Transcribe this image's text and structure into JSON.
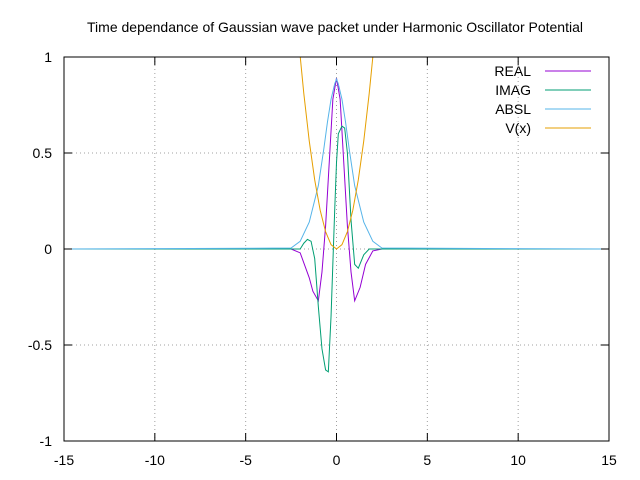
{
  "chart_data": {
    "type": "line",
    "title": "Time dependance of Gaussian wave packet under Harmonic Oscillator Potential",
    "xlabel": "",
    "ylabel": "",
    "xlim": [
      -15,
      15
    ],
    "ylim": [
      -1,
      1
    ],
    "xticks": [
      -15,
      -10,
      -5,
      0,
      5,
      10,
      15
    ],
    "yticks": [
      -1,
      -0.5,
      0,
      0.5,
      1
    ],
    "xtick_labels": [
      "-15",
      "-10",
      "-5",
      "0",
      "5",
      "10",
      "15"
    ],
    "ytick_labels": [
      "-1",
      "-0.5",
      "0",
      "0.5",
      "1"
    ],
    "grid": true,
    "legend_position": "top-right",
    "series": [
      {
        "name": "REAL",
        "color": "#9400d3",
        "x": [
          -15,
          -2.5,
          -2.0,
          -1.5,
          -1.3,
          -1.0,
          -0.8,
          -0.6,
          -0.4,
          -0.2,
          0.0,
          0.2,
          0.4,
          0.6,
          0.8,
          1.0,
          1.3,
          1.6,
          2.0,
          2.5,
          15
        ],
        "y": [
          0,
          0,
          -0.02,
          -0.15,
          -0.22,
          -0.27,
          -0.12,
          0.12,
          0.45,
          0.78,
          0.89,
          0.78,
          0.45,
          0.12,
          -0.12,
          -0.27,
          -0.2,
          -0.08,
          -0.01,
          0,
          0
        ]
      },
      {
        "name": "IMAG",
        "color": "#009e73",
        "x": [
          -15,
          -2.5,
          -2.0,
          -1.8,
          -1.6,
          -1.4,
          -1.2,
          -1.0,
          -0.8,
          -0.6,
          -0.45,
          -0.3,
          -0.1,
          0.0,
          0.1,
          0.3,
          0.45,
          0.6,
          0.8,
          1.0,
          1.2,
          1.5,
          1.8,
          2.2,
          2.6,
          15
        ],
        "y": [
          0,
          0,
          0.0,
          0.03,
          0.05,
          0.04,
          -0.05,
          -0.3,
          -0.52,
          -0.63,
          -0.64,
          -0.35,
          0.2,
          0.45,
          0.6,
          0.64,
          0.63,
          0.5,
          0.15,
          -0.08,
          -0.1,
          -0.03,
          0.0,
          0.0,
          0,
          0
        ]
      },
      {
        "name": "ABSL",
        "color": "#56b4e9",
        "x": [
          -15,
          -2.5,
          -2.0,
          -1.5,
          -1.0,
          -0.7,
          -0.5,
          -0.3,
          -0.1,
          0.0,
          0.1,
          0.3,
          0.5,
          0.7,
          1.0,
          1.5,
          2.0,
          2.5,
          15
        ],
        "y": [
          0,
          0.005,
          0.04,
          0.14,
          0.33,
          0.52,
          0.66,
          0.78,
          0.86,
          0.885,
          0.86,
          0.78,
          0.66,
          0.52,
          0.33,
          0.14,
          0.04,
          0.005,
          0
        ]
      },
      {
        "name": "V(x)",
        "color": "#e69f00",
        "x": [
          -2.1,
          -1.8,
          -1.5,
          -1.2,
          -0.9,
          -0.6,
          -0.3,
          0.0,
          0.3,
          0.6,
          0.9,
          1.2,
          1.5,
          1.8,
          2.0
        ],
        "y": [
          1.1025,
          0.81,
          0.5625,
          0.36,
          0.2025,
          0.09,
          0.0225,
          0.0,
          0.0225,
          0.09,
          0.2025,
          0.36,
          0.5625,
          0.81,
          1.0
        ]
      }
    ]
  }
}
